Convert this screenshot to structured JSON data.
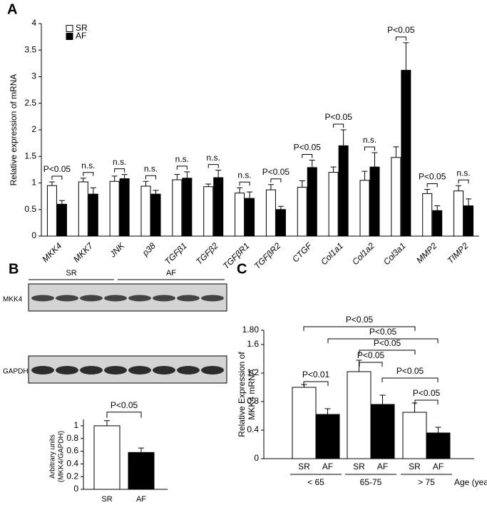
{
  "chart_data": [
    {
      "type": "bar",
      "panel_label": "A",
      "ylabel": "Relative expression of mRNA",
      "categories": [
        "MKK4",
        "MKK7",
        "JNK",
        "p38",
        "TGFβ1",
        "TGFβ2",
        "TGFβR1",
        "TGFβR2",
        "CTGF",
        "Col1a1",
        "Col1a2",
        "Col3a1",
        "MMP2",
        "TIMP2"
      ],
      "series": [
        {
          "name": "SR",
          "color": "#ffffff",
          "values": [
            0.95,
            1.02,
            1.03,
            0.94,
            1.06,
            0.93,
            0.81,
            0.87,
            0.92,
            1.2,
            1.05,
            1.48,
            0.8,
            0.85
          ],
          "errors": [
            0.07,
            0.07,
            0.1,
            0.09,
            0.1,
            0.05,
            0.1,
            0.1,
            0.12,
            0.1,
            0.17,
            0.2,
            0.08,
            0.1
          ]
        },
        {
          "name": "AF",
          "color": "#000000",
          "values": [
            0.6,
            0.79,
            1.08,
            0.79,
            1.09,
            1.1,
            0.71,
            0.5,
            1.29,
            1.7,
            1.3,
            3.12,
            0.48,
            0.57
          ],
          "errors": [
            0.07,
            0.12,
            0.08,
            0.07,
            0.12,
            0.14,
            0.12,
            0.06,
            0.14,
            0.3,
            0.27,
            0.52,
            0.09,
            0.13
          ]
        }
      ],
      "annotations": [
        "P<0.05",
        "n.s.",
        "n.s.",
        "n.s.",
        "n.s.",
        "n.s.",
        "n.s.",
        "P<0.05",
        "P<0.05",
        "P<0.05",
        "n.s.",
        "P<0.05",
        "P<0.05",
        "n.s."
      ],
      "ylim": [
        0,
        4
      ],
      "yticks": [
        0,
        0.5,
        1,
        1.5,
        2,
        2.5,
        3,
        3.5,
        4
      ]
    },
    {
      "type": "bar",
      "panel_label": "B",
      "ylabel": [
        "Arbitrary units",
        "(MKK4/GAPDH)"
      ],
      "categories": [
        "SR",
        "AF"
      ],
      "values": [
        1.0,
        0.58
      ],
      "errors": [
        0.08,
        0.07
      ],
      "colors": [
        "#ffffff",
        "#000000"
      ],
      "annotations": [
        "P<0.05"
      ],
      "ylim": [
        0,
        1.1
      ],
      "yticks": [
        0,
        0.2,
        0.4,
        0.6,
        0.8,
        1
      ]
    },
    {
      "type": "grouped_bar",
      "panel_label": "C",
      "ylabel": [
        "Relative Expression of",
        "MKK4 mRNA"
      ],
      "xlabel": "Age (years)",
      "categories": [
        "< 65",
        "65-75",
        "> 75"
      ],
      "series": [
        {
          "name": "SR",
          "color": "#ffffff",
          "values": [
            1.0,
            1.22,
            0.65
          ],
          "errors": [
            0.04,
            0.16,
            0.13
          ]
        },
        {
          "name": "AF",
          "color": "#000000",
          "values": [
            0.62,
            0.76,
            0.36
          ],
          "errors": [
            0.08,
            0.13,
            0.08
          ]
        }
      ],
      "annotations": [
        "P<0.05",
        "P<0.05",
        "P<0.05",
        "P<0.05",
        "P<0.05",
        "P<0.01",
        "P<0.05"
      ],
      "ylim": [
        0,
        1.8
      ],
      "yticks": [
        0,
        0.4,
        0.8,
        1.2,
        1.6,
        {
          "value": 1.8,
          "label": "1.80"
        }
      ]
    }
  ],
  "blot": {
    "groups": [
      "SR",
      "AF"
    ],
    "rows": [
      "MKK4",
      "GAPDH"
    ]
  }
}
